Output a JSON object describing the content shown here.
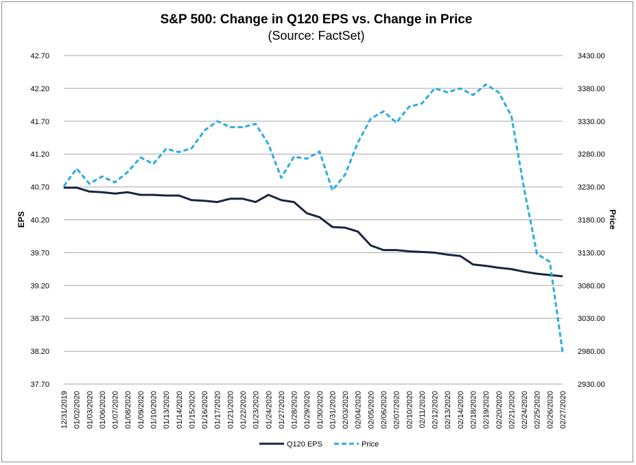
{
  "chart_data": {
    "type": "line",
    "title": "S&P 500: Change in Q120 EPS vs. Change in Price",
    "subtitle": "(Source: FactSet)",
    "ylabel": "EPS",
    "y2label": "Price",
    "ylim": [
      37.7,
      42.7
    ],
    "y2lim": [
      2930,
      3430
    ],
    "yticks": [
      "42.70",
      "42.20",
      "41.70",
      "41.20",
      "40.70",
      "40.20",
      "39.70",
      "39.20",
      "38.70",
      "38.20",
      "37.70"
    ],
    "y2ticks": [
      "3430.00",
      "3380.00",
      "3330.00",
      "3280.00",
      "3230.00",
      "3180.00",
      "3130.00",
      "3080.00",
      "3030.00",
      "2980.00",
      "2930.00"
    ],
    "grid": true,
    "legend": "bottom-center",
    "categories": [
      "12/31/2019",
      "01/02/2020",
      "01/03/2020",
      "01/06/2020",
      "01/07/2020",
      "01/08/2020",
      "01/09/2020",
      "01/10/2020",
      "01/13/2020",
      "01/14/2020",
      "01/15/2020",
      "01/16/2020",
      "01/17/2020",
      "01/21/2020",
      "01/22/2020",
      "01/23/2020",
      "01/24/2020",
      "01/27/2020",
      "01/28/2020",
      "01/29/2020",
      "01/30/2020",
      "01/31/2020",
      "02/03/2020",
      "02/04/2020",
      "02/05/2020",
      "02/06/2020",
      "02/07/2020",
      "02/10/2020",
      "02/11/2020",
      "02/12/2020",
      "02/13/2020",
      "02/14/2020",
      "02/18/2020",
      "02/19/2020",
      "02/20/2020",
      "02/21/2020",
      "02/24/2020",
      "02/25/2020",
      "02/26/2020",
      "02/27/2020"
    ],
    "series": [
      {
        "name": "Q120 EPS",
        "axis": "left",
        "color": "#17243f",
        "dash": "solid",
        "values": [
          40.69,
          40.69,
          40.63,
          40.62,
          40.6,
          40.62,
          40.58,
          40.58,
          40.57,
          40.57,
          40.5,
          40.49,
          40.47,
          40.52,
          40.52,
          40.47,
          40.58,
          40.5,
          40.47,
          40.3,
          40.24,
          40.09,
          40.08,
          40.02,
          39.81,
          39.74,
          39.74,
          39.72,
          39.71,
          39.7,
          39.67,
          39.65,
          39.52,
          39.5,
          39.47,
          39.45,
          39.41,
          39.38,
          39.36,
          39.34
        ]
      },
      {
        "name": "Price",
        "axis": "right",
        "color": "#29abe2",
        "dash": "dashed",
        "values": [
          3231,
          3258,
          3235,
          3246,
          3237,
          3253,
          3275,
          3265,
          3288,
          3283,
          3289,
          3316,
          3330,
          3321,
          3321,
          3326,
          3295,
          3244,
          3276,
          3273,
          3284,
          3225,
          3249,
          3298,
          3334,
          3345,
          3328,
          3352,
          3357,
          3380,
          3374,
          3380,
          3370,
          3386,
          3374,
          3338,
          3226,
          3128,
          3116,
          2979
        ]
      }
    ]
  }
}
